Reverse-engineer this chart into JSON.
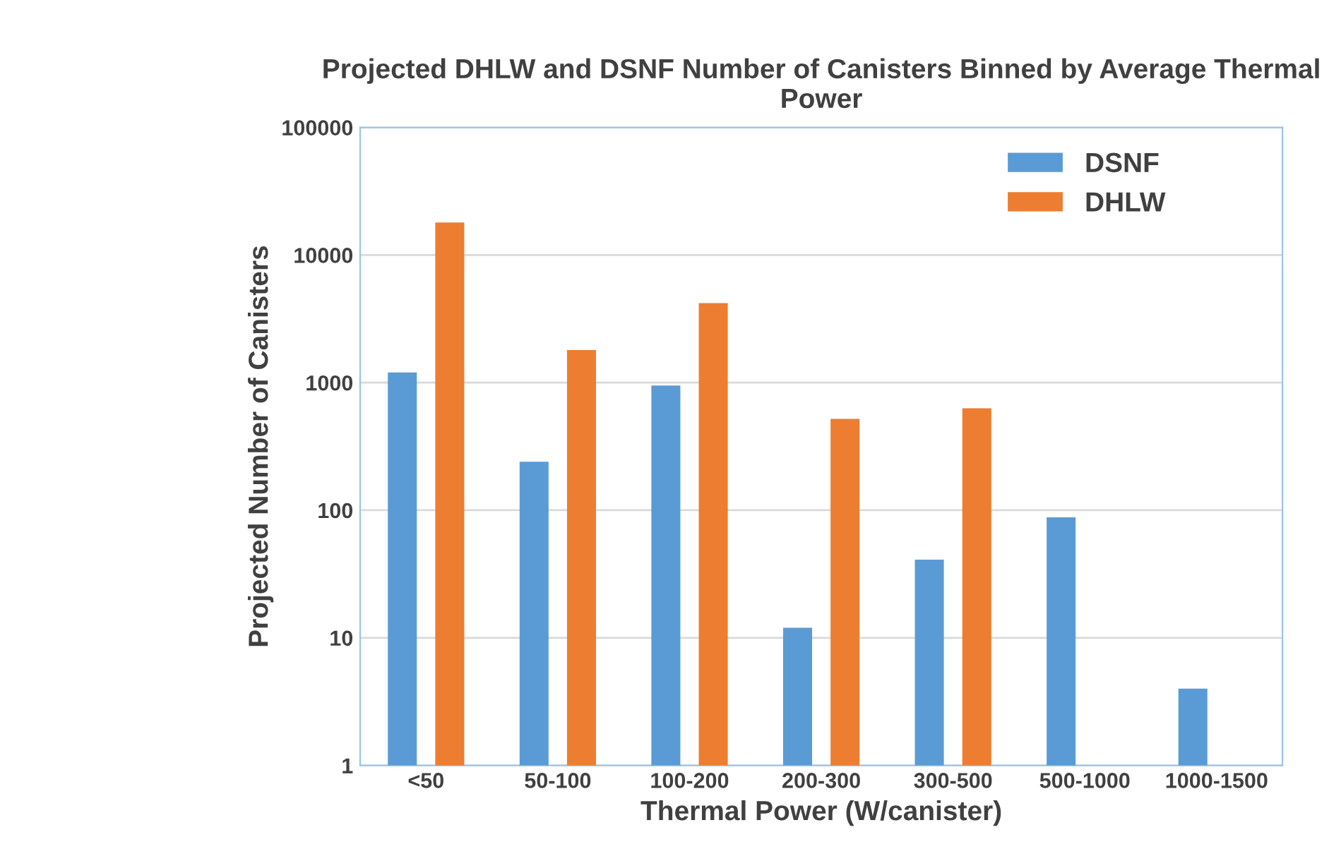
{
  "chart_data": {
    "type": "bar",
    "title": "Projected DHLW and DSNF Number of Canisters Binned by Average Thermal Power",
    "xlabel": "Thermal Power (W/canister)",
    "ylabel": "Projected Number of Canisters",
    "categories": [
      "<50",
      "50-100",
      "100-200",
      "200-300",
      "300-500",
      "500-1000",
      "1000-1500"
    ],
    "series": [
      {
        "name": "DSNF",
        "color": "#5b9bd5",
        "values": [
          1200,
          240,
          950,
          12,
          41,
          88,
          4
        ]
      },
      {
        "name": "DHLW",
        "color": "#ed7d31",
        "values": [
          18000,
          1800,
          4200,
          520,
          630,
          null,
          null
        ]
      }
    ],
    "log": true,
    "ylim": [
      1,
      100000
    ],
    "yticks": [
      1,
      10,
      100,
      1000,
      10000,
      100000
    ],
    "grid": "y",
    "legend": "top right"
  }
}
